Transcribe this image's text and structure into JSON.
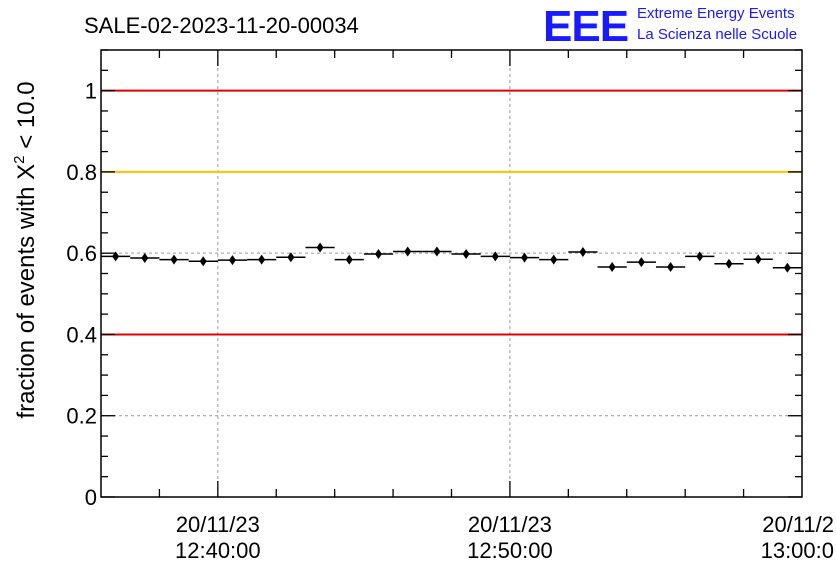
{
  "header": {
    "run_title": "SALE-02-2023-11-20-00034"
  },
  "logo": {
    "letters": "EEE",
    "line1": "Extreme Energy Events",
    "line2": "La Scienza nelle Scuole",
    "color": "#1a1aff"
  },
  "colors": {
    "upper_limit": "#e00000",
    "lower_limit": "#e00000",
    "reference": "#ffc000",
    "points": "#000000",
    "grid": "#9a9a9a"
  },
  "chart_data": {
    "type": "scatter",
    "title": "SALE-02-2023-11-20-00034",
    "ylabel_prefix": "fraction of events with ",
    "ylabel_symbol": "X",
    "ylabel_sup": "2",
    "ylabel_suffix": " < 10.0",
    "xlabel": "",
    "ylim": [
      0,
      1.1
    ],
    "xlim": [
      "2023-11-20 12:36:00",
      "2023-11-20 13:00:00"
    ],
    "yticks": [
      "0",
      "0.2",
      "0.4",
      "0.6",
      "0.8",
      "1"
    ],
    "xticks": [
      {
        "time": "2023-11-20 12:40:00",
        "date_label": "20/11/23",
        "time_label": "12:40:00"
      },
      {
        "time": "2023-11-20 12:50:00",
        "date_label": "20/11/23",
        "time_label": "12:50:00"
      },
      {
        "time": "2023-11-20 13:00:00",
        "date_label": "20/11/2",
        "time_label": "13:00:0"
      }
    ],
    "grid": true,
    "hlines": [
      {
        "y": 1.0,
        "role": "upper_limit"
      },
      {
        "y": 0.8,
        "role": "reference"
      },
      {
        "y": 0.4,
        "role": "lower_limit"
      }
    ],
    "bin_width_minutes": 1,
    "points": [
      {
        "x": "2023-11-20 12:36:30",
        "y": 0.592,
        "err": 0.008
      },
      {
        "x": "2023-11-20 12:37:30",
        "y": 0.588,
        "err": 0.008
      },
      {
        "x": "2023-11-20 12:38:30",
        "y": 0.584,
        "err": 0.008
      },
      {
        "x": "2023-11-20 12:39:30",
        "y": 0.58,
        "err": 0.008
      },
      {
        "x": "2023-11-20 12:40:30",
        "y": 0.583,
        "err": 0.008
      },
      {
        "x": "2023-11-20 12:41:30",
        "y": 0.584,
        "err": 0.008
      },
      {
        "x": "2023-11-20 12:42:30",
        "y": 0.59,
        "err": 0.008
      },
      {
        "x": "2023-11-20 12:43:30",
        "y": 0.614,
        "err": 0.008
      },
      {
        "x": "2023-11-20 12:44:30",
        "y": 0.584,
        "err": 0.008
      },
      {
        "x": "2023-11-20 12:45:30",
        "y": 0.598,
        "err": 0.008
      },
      {
        "x": "2023-11-20 12:46:30",
        "y": 0.604,
        "err": 0.008
      },
      {
        "x": "2023-11-20 12:47:30",
        "y": 0.604,
        "err": 0.008
      },
      {
        "x": "2023-11-20 12:48:30",
        "y": 0.598,
        "err": 0.008
      },
      {
        "x": "2023-11-20 12:49:30",
        "y": 0.592,
        "err": 0.008
      },
      {
        "x": "2023-11-20 12:50:30",
        "y": 0.589,
        "err": 0.008
      },
      {
        "x": "2023-11-20 12:51:30",
        "y": 0.584,
        "err": 0.008
      },
      {
        "x": "2023-11-20 12:52:30",
        "y": 0.603,
        "err": 0.008
      },
      {
        "x": "2023-11-20 12:53:30",
        "y": 0.566,
        "err": 0.008
      },
      {
        "x": "2023-11-20 12:54:30",
        "y": 0.578,
        "err": 0.008
      },
      {
        "x": "2023-11-20 12:55:30",
        "y": 0.566,
        "err": 0.008
      },
      {
        "x": "2023-11-20 12:56:30",
        "y": 0.592,
        "err": 0.008
      },
      {
        "x": "2023-11-20 12:57:30",
        "y": 0.574,
        "err": 0.008
      },
      {
        "x": "2023-11-20 12:58:30",
        "y": 0.585,
        "err": 0.008
      },
      {
        "x": "2023-11-20 12:59:30",
        "y": 0.564,
        "err": 0.008
      }
    ]
  }
}
